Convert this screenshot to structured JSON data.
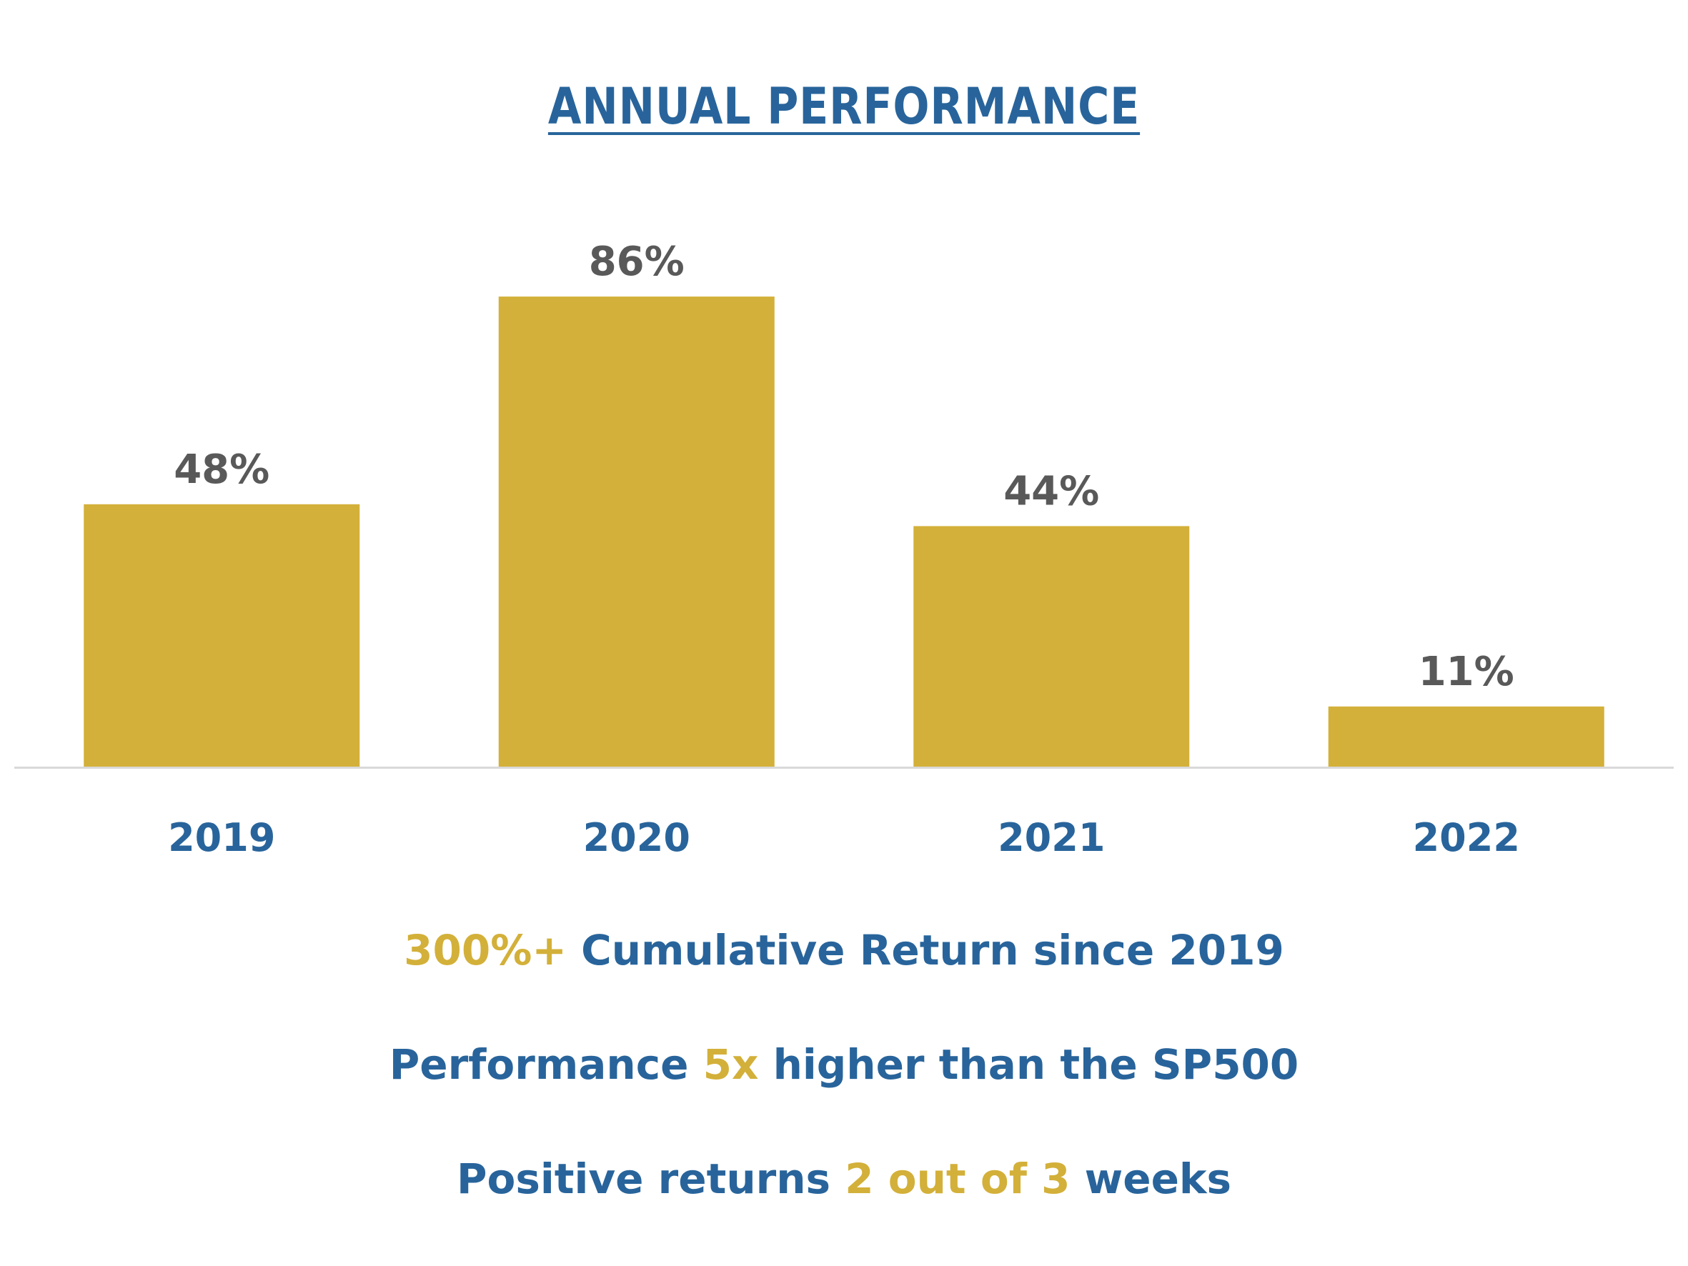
{
  "colors": {
    "bar": "#d3b039",
    "value_label": "#595959",
    "category_label": "#28649b",
    "axis": "#d9d9d9",
    "title": "#28649b",
    "highlight": "#d3b039"
  },
  "chart_data": {
    "type": "bar",
    "title": "ANNUAL PERFORMANCE",
    "categories": [
      "2019",
      "2020",
      "2021",
      "2022"
    ],
    "values": [
      48,
      86,
      44,
      11
    ],
    "value_labels": [
      "48%",
      "86%",
      "44%",
      "11%"
    ],
    "ylim": [
      0,
      100
    ],
    "grid": false,
    "legend": "none",
    "xlabel": "",
    "ylabel": ""
  },
  "callouts": {
    "line1": {
      "highlight": "300%+",
      "rest": " Cumulative Return since 2019"
    },
    "line2": {
      "before": "Performance ",
      "highlight": "5x",
      "after": " higher than the SP500"
    },
    "line3": {
      "before": "Positive returns ",
      "highlight": "2 out of 3",
      "after": " weeks"
    }
  }
}
